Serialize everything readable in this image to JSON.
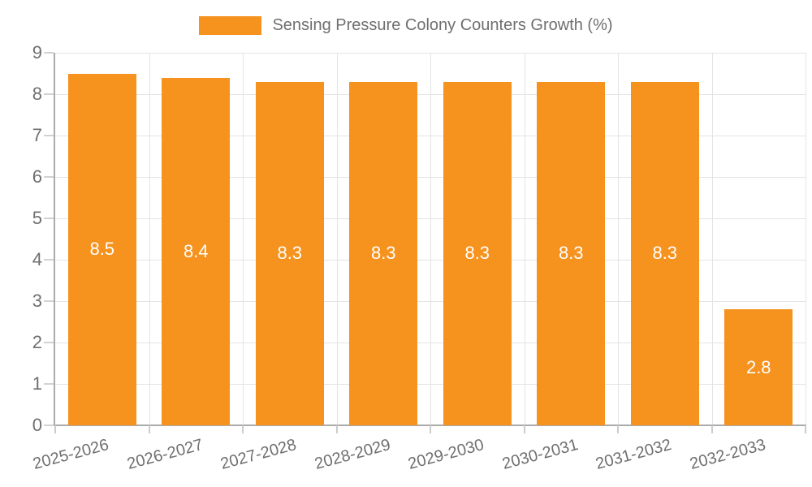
{
  "legend": {
    "label": "Sensing Pressure Colony Counters Growth (%)"
  },
  "chart_data": {
    "type": "bar",
    "title": "Sensing Pressure Colony Counters Growth (%)",
    "series_name": "Sensing Pressure Colony Counters Growth (%)",
    "categories": [
      "2025-2026",
      "2026-2027",
      "2027-2028",
      "2028-2029",
      "2029-2030",
      "2030-2031",
      "2031-2032",
      "2032-2033"
    ],
    "values": [
      8.5,
      8.4,
      8.3,
      8.3,
      8.3,
      8.3,
      8.3,
      2.8
    ],
    "value_labels": [
      "8.5",
      "8.4",
      "8.3",
      "8.3",
      "8.3",
      "8.3",
      "8.3",
      "2.8"
    ],
    "xlabel": "",
    "ylabel": "",
    "ylim": [
      0,
      9
    ],
    "y_ticks": [
      "0",
      "1",
      "2",
      "3",
      "4",
      "5",
      "6",
      "7",
      "8",
      "9"
    ],
    "grid": "on",
    "legend_position": "top-center",
    "x_label_rotation_deg": -15,
    "colors": {
      "bar": "#F6921E",
      "value_label": "#FFFFFF",
      "axis_text": "#6F6F6F",
      "gridline": "#E4E4E4",
      "axis_line": "#ABABAB",
      "background": "#FFFFFF"
    }
  }
}
